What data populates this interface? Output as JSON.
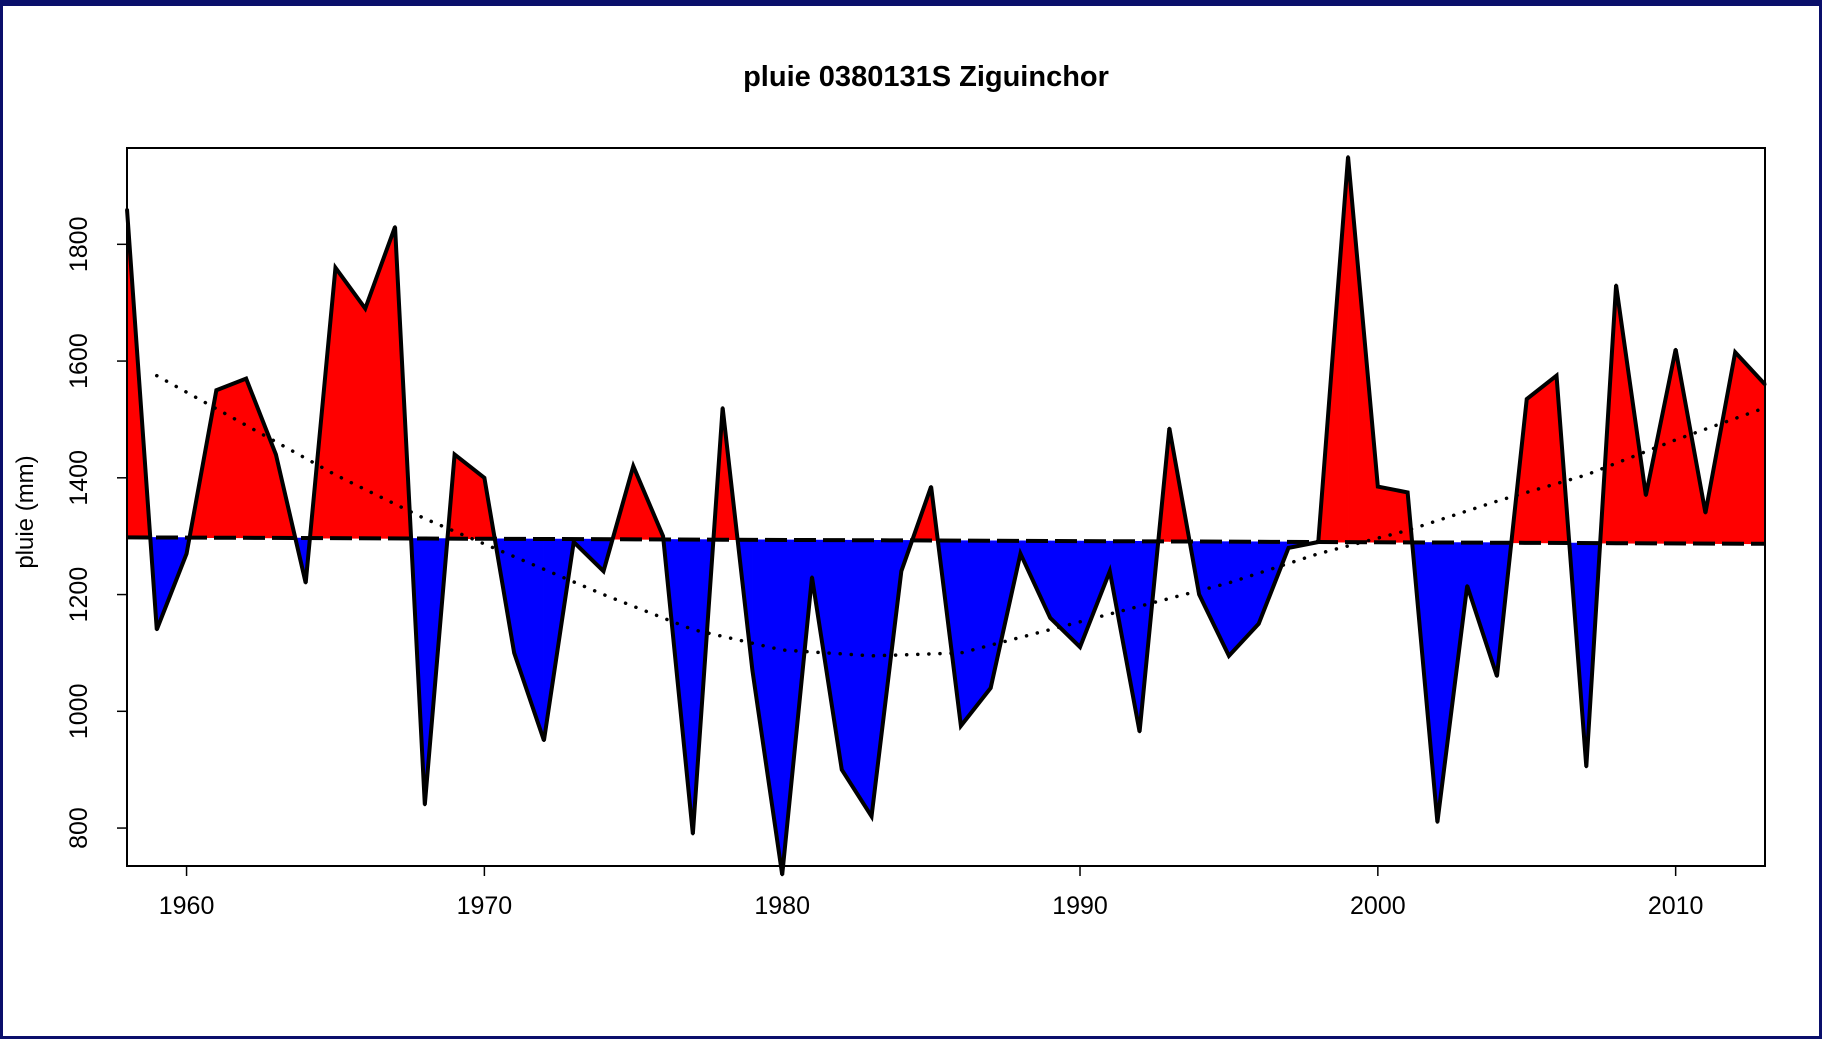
{
  "chart_data": {
    "type": "area",
    "title": "pluie 0380131S Ziguinchor",
    "xlabel": "",
    "ylabel": "pluie (mm)",
    "xlim": [
      1958,
      2013
    ],
    "ylim": [
      735,
      1965
    ],
    "x_ticks": [
      1960,
      1970,
      1980,
      1990,
      2000,
      2010
    ],
    "y_ticks": [
      800,
      1000,
      1200,
      1400,
      1600,
      1800
    ],
    "x": [
      1958,
      1959,
      1960,
      1961,
      1962,
      1963,
      1964,
      1965,
      1966,
      1967,
      1968,
      1969,
      1970,
      1971,
      1972,
      1973,
      1974,
      1975,
      1976,
      1977,
      1978,
      1979,
      1980,
      1981,
      1982,
      1983,
      1984,
      1985,
      1986,
      1987,
      1988,
      1989,
      1990,
      1991,
      1992,
      1993,
      1994,
      1995,
      1996,
      1997,
      1998,
      1999,
      2000,
      2001,
      2002,
      2003,
      2004,
      2005,
      2006,
      2007,
      2008,
      2009,
      2010,
      2011,
      2012,
      2013
    ],
    "values": [
      1860,
      1140,
      1270,
      1550,
      1570,
      1440,
      1220,
      1760,
      1690,
      1830,
      840,
      1440,
      1400,
      1100,
      950,
      1290,
      1240,
      1420,
      1300,
      790,
      1520,
      1070,
      720,
      1230,
      900,
      820,
      1240,
      1385,
      975,
      1040,
      1270,
      1160,
      1110,
      1240,
      965,
      1485,
      1200,
      1095,
      1150,
      1280,
      1290,
      1950,
      1385,
      1375,
      810,
      1215,
      1060,
      1535,
      1575,
      905,
      1730,
      1370,
      1620,
      1340,
      1615,
      1560
    ],
    "reference_level": {
      "x": [
        1958,
        1968,
        1978,
        1988,
        1998,
        2008,
        2013
      ],
      "values": [
        1298,
        1296,
        1294,
        1292,
        1290,
        1288,
        1287
      ]
    },
    "trend_line": {
      "x": [
        1959,
        1962,
        1965,
        1968,
        1971,
        1974,
        1977,
        1980,
        1983,
        1986,
        1989,
        1992,
        1995,
        1998,
        2001,
        2004,
        2007,
        2010,
        2013
      ],
      "values": [
        1575,
        1490,
        1405,
        1330,
        1265,
        1200,
        1140,
        1105,
        1095,
        1100,
        1140,
        1180,
        1220,
        1270,
        1310,
        1360,
        1405,
        1465,
        1520
      ]
    },
    "colors": {
      "above": "#ff0000",
      "below": "#0000ff",
      "line": "#000000",
      "background": "#ffffff",
      "frame": "#0a0f6b"
    },
    "grid": false,
    "legend": "none"
  }
}
